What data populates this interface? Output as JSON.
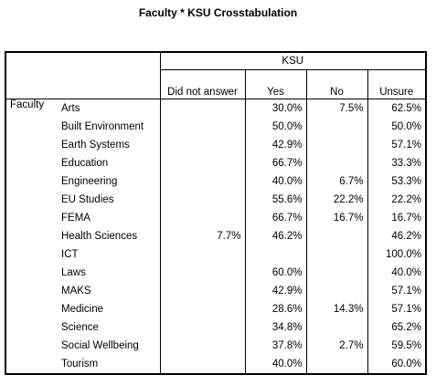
{
  "title": "Faculty * KSU Crosstabulation",
  "ksu_header": "KSU",
  "row_variable": "Faculty",
  "columns": [
    "Did not answer",
    "Yes",
    "No",
    "Unsure"
  ],
  "rows": [
    {
      "label": "Arts",
      "did_not_answer": "",
      "yes": "30.0%",
      "no": "7.5%",
      "unsure": "62.5%"
    },
    {
      "label": "Built Environment",
      "did_not_answer": "",
      "yes": "50.0%",
      "no": "",
      "unsure": "50.0%"
    },
    {
      "label": "Earth Systems",
      "did_not_answer": "",
      "yes": "42.9%",
      "no": "",
      "unsure": "57.1%"
    },
    {
      "label": "Education",
      "did_not_answer": "",
      "yes": "66.7%",
      "no": "",
      "unsure": "33.3%"
    },
    {
      "label": "Engineering",
      "did_not_answer": "",
      "yes": "40.0%",
      "no": "6.7%",
      "unsure": "53.3%"
    },
    {
      "label": "EU Studies",
      "did_not_answer": "",
      "yes": "55.6%",
      "no": "22.2%",
      "unsure": "22.2%"
    },
    {
      "label": "FEMA",
      "did_not_answer": "",
      "yes": "66.7%",
      "no": "16.7%",
      "unsure": "16.7%"
    },
    {
      "label": "Health Sciences",
      "did_not_answer": "7.7%",
      "yes": "46.2%",
      "no": "",
      "unsure": "46.2%"
    },
    {
      "label": "ICT",
      "did_not_answer": "",
      "yes": "",
      "no": "",
      "unsure": "100.0%"
    },
    {
      "label": "Laws",
      "did_not_answer": "",
      "yes": "60.0%",
      "no": "",
      "unsure": "40.0%"
    },
    {
      "label": "MAKS",
      "did_not_answer": "",
      "yes": "42.9%",
      "no": "",
      "unsure": "57.1%"
    },
    {
      "label": "Medicine",
      "did_not_answer": "",
      "yes": "28.6%",
      "no": "14.3%",
      "unsure": "57.1%"
    },
    {
      "label": "Science",
      "did_not_answer": "",
      "yes": "34.8%",
      "no": "",
      "unsure": "65.2%"
    },
    {
      "label": "Social Wellbeing",
      "did_not_answer": "",
      "yes": "37.8%",
      "no": "2.7%",
      "unsure": "59.5%"
    },
    {
      "label": "Tourism",
      "did_not_answer": "",
      "yes": "40.0%",
      "no": "",
      "unsure": "60.0%"
    }
  ]
}
